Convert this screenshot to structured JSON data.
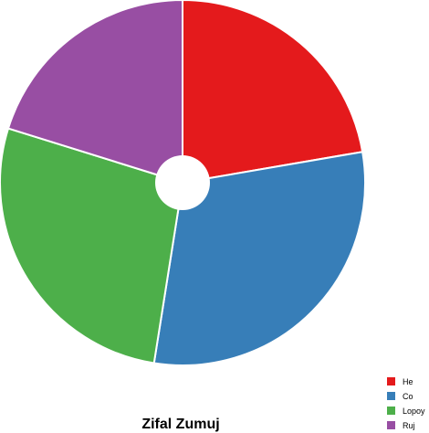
{
  "chart_data": {
    "type": "pie",
    "title": "Zifal Zumuj",
    "categories": [
      "He",
      "Co",
      "Lopoy",
      "Ruj"
    ],
    "values": [
      22.3,
      30.2,
      27.3,
      20.2
    ],
    "colors": [
      "#e41a1c",
      "#377eb8",
      "#4daf4a",
      "#984ea3"
    ],
    "hole": true,
    "legend_position": "bottom-right"
  }
}
